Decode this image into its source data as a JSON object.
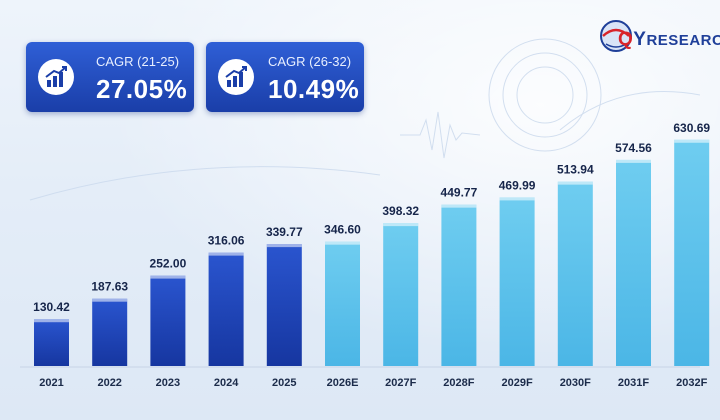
{
  "logo": {
    "text_q": "Q",
    "text_y": "Y",
    "text_rest": "RESEARCH"
  },
  "cagr_cards": [
    {
      "label": "CAGR (21-25)",
      "value": "27.05%"
    },
    {
      "label": "CAGR (26-32)",
      "value": "10.49%"
    }
  ],
  "colors": {
    "historical_bar": "#1e44b8",
    "forecast_bar": "#5cc3ea",
    "card": "#2350c4"
  },
  "chart_data": {
    "type": "bar",
    "title": "",
    "xlabel": "",
    "ylabel": "",
    "categories": [
      "2021",
      "2022",
      "2023",
      "2024",
      "2025",
      "2026E",
      "2027F",
      "2028F",
      "2029F",
      "2030F",
      "2031F",
      "2032F"
    ],
    "values": [
      130.42,
      187.63,
      252.0,
      316.06,
      339.77,
      346.6,
      398.32,
      449.77,
      469.99,
      513.94,
      574.56,
      630.69
    ],
    "value_labels": [
      "130.42",
      "187.63",
      "252.00",
      "316.06",
      "339.77",
      "346.60",
      "398.32",
      "449.77",
      "469.99",
      "513.94",
      "574.56",
      "630.69"
    ],
    "historical_count": 5,
    "ylim": [
      0,
      700
    ],
    "grid": false,
    "legend": "none"
  }
}
